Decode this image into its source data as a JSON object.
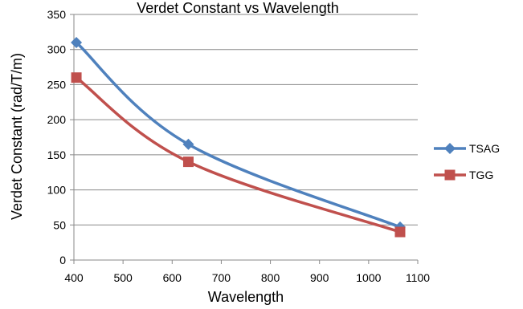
{
  "chart_data": {
    "type": "line",
    "title": "Verdet Constant vs Wavelength",
    "xlabel": "Wavelength",
    "ylabel": "Verdet Constant (rad/T/m)",
    "xlim": [
      400,
      1100
    ],
    "ylim": [
      0,
      350
    ],
    "x_ticks": [
      400,
      500,
      600,
      700,
      800,
      900,
      1000,
      1100
    ],
    "y_ticks": [
      0,
      50,
      100,
      150,
      200,
      250,
      300,
      350
    ],
    "grid": "horizontal",
    "legend_position": "right",
    "smoothed": true,
    "series": [
      {
        "name": "TSAG",
        "color": "#4F81BD",
        "marker": "diamond",
        "x": [
          405,
          633,
          1064
        ],
        "y": [
          310,
          165,
          47
        ]
      },
      {
        "name": "TGG",
        "color": "#C0504D",
        "marker": "square",
        "x": [
          405,
          633,
          1064
        ],
        "y": [
          260,
          140,
          40
        ]
      }
    ]
  }
}
